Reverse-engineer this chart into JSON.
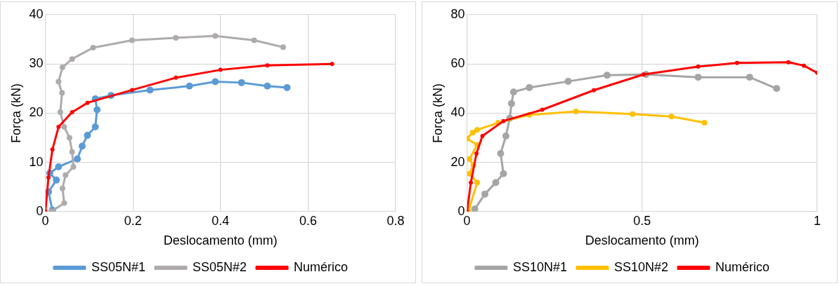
{
  "chart_data": [
    {
      "type": "line",
      "xlabel": "Deslocamento (mm)",
      "ylabel": "Força (kN)",
      "xlim": [
        0,
        0.8
      ],
      "xticks": [
        0,
        0.2,
        0.4,
        0.6,
        0.8
      ],
      "ylim": [
        0,
        40
      ],
      "yticks": [
        0,
        10,
        20,
        30,
        40
      ],
      "grid": true,
      "legend": "bottom",
      "marker": "circle",
      "line_style": "solid",
      "series": [
        {
          "name": "SS05N#1",
          "color": "#5b9bd5",
          "x": [
            0.016,
            0.007,
            0.025,
            0.01,
            0.03,
            0.073,
            0.084,
            0.096,
            0.114,
            0.118,
            0.114,
            0.15,
            0.239,
            0.329,
            0.388,
            0.448,
            0.507,
            0.552
          ],
          "values": [
            0.3,
            4,
            6.4,
            7.8,
            9.1,
            10.7,
            13.3,
            15.5,
            17.2,
            20.7,
            22.9,
            23.6,
            24.7,
            25.5,
            26.4,
            26.2,
            25.5,
            25.2
          ]
        },
        {
          "name": "SS05N#2",
          "color": "#afabab",
          "x": [
            0.013,
            0.043,
            0.039,
            0.046,
            0.064,
            0.061,
            0.055,
            0.043,
            0.034,
            0.038,
            0.03,
            0.039,
            0.061,
            0.109,
            0.198,
            0.298,
            0.388,
            0.477,
            0.543
          ],
          "values": [
            0,
            1.7,
            4.7,
            7.4,
            9.1,
            12.1,
            15,
            17.2,
            20.2,
            24.1,
            26.4,
            29.3,
            31,
            33.3,
            34.8,
            35.3,
            35.7,
            34.8,
            33.4
          ]
        },
        {
          "name": "Numérico",
          "color": "#ff0000",
          "x": [
            0,
            0.007,
            0.016,
            0.03,
            0.061,
            0.096,
            0.198,
            0.298,
            0.4,
            0.507,
            0.655
          ],
          "values": [
            0,
            6.9,
            12.6,
            17.2,
            20.2,
            22.1,
            24.7,
            27.2,
            28.8,
            29.7,
            30
          ]
        }
      ]
    },
    {
      "type": "line",
      "xlabel": "Deslocamento (mm)",
      "ylabel": "Força (kN)",
      "xlim": [
        0,
        1
      ],
      "xticks": [
        0,
        0.5,
        1
      ],
      "ylim": [
        0,
        80
      ],
      "yticks": [
        0,
        20,
        40,
        60,
        80
      ],
      "grid": true,
      "legend": "bottom",
      "marker": "circle",
      "line_style": "solid",
      "series": [
        {
          "name": "SS10N#1",
          "color": "#a5a5a5",
          "x": [
            0.022,
            0.051,
            0.082,
            0.104,
            0.096,
            0.111,
            0.122,
            0.127,
            0.133,
            0.178,
            0.289,
            0.4,
            0.511,
            0.66,
            0.807,
            0.884
          ],
          "values": [
            1,
            7.1,
            11.8,
            15.4,
            23.6,
            30.7,
            37.9,
            43.9,
            48.6,
            50.4,
            52.9,
            55.4,
            55.7,
            54.6,
            54.6,
            50
          ]
        },
        {
          "name": "SS10N#2",
          "color": "#ffc000",
          "x": [
            0.004,
            0.029,
            0.007,
            0.018,
            0.007,
            0.029,
            0,
            0.016,
            0.029,
            0.089,
            0.178,
            0.311,
            0.473,
            0.584,
            0.678
          ],
          "values": [
            0,
            11.8,
            15.4,
            18.9,
            21.4,
            27.1,
            29.6,
            32.1,
            33.2,
            36.1,
            39.3,
            40.7,
            39.6,
            38.6,
            36.1
          ]
        },
        {
          "name": "Numérico",
          "color": "#ff0000",
          "x": [
            0,
            0.011,
            0.027,
            0.044,
            0.104,
            0.215,
            0.362,
            0.504,
            0.66,
            0.771,
            0.918,
            0.962,
            1
          ],
          "values": [
            0,
            11.8,
            23.6,
            30.7,
            36.8,
            41.4,
            49.3,
            55.7,
            58.9,
            60.4,
            60.7,
            59.3,
            56.4
          ]
        }
      ]
    }
  ]
}
